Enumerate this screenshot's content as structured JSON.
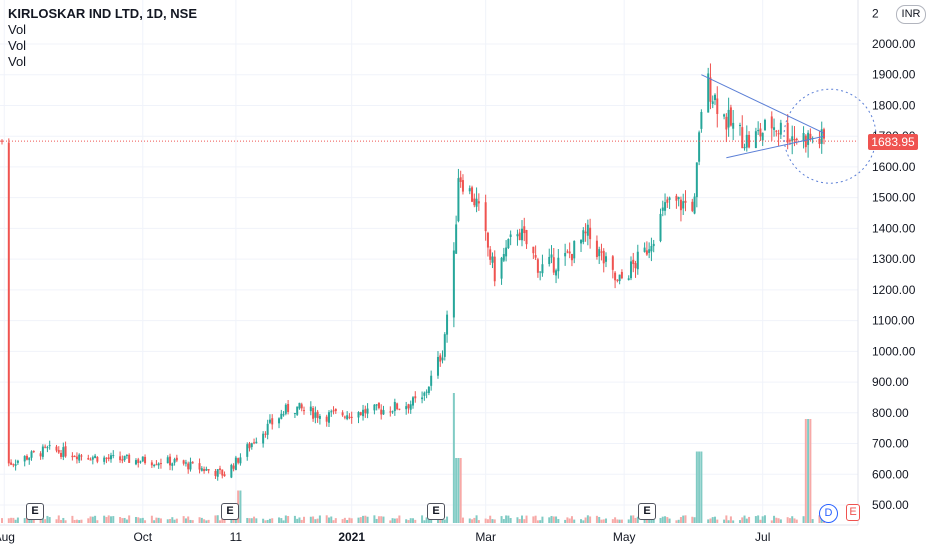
{
  "legend": {
    "title": "KIRLOSKAR IND LTD, 1D, NSE",
    "lines": [
      "Vol",
      "Vol",
      "Vol"
    ]
  },
  "currency_label": "INR",
  "last_price": {
    "label": "1683.95",
    "value": 1683.95
  },
  "events": [
    "E",
    "E",
    "E",
    "E"
  ],
  "event_right": "E",
  "dividend_label": "D",
  "colors": {
    "up": "#26a69a",
    "down": "#ef5350",
    "drawing": "#5b7fd6",
    "grid": "#f0f3fa"
  },
  "chart_data": {
    "type": "candlestick",
    "title": "KIRLOSKAR IND LTD, 1D, NSE",
    "y_ticks": [
      "2000.00",
      "1900.00",
      "1800.00",
      "1700.00",
      "1600.00",
      "1500.00",
      "1400.00",
      "1300.00",
      "1200.00",
      "1100.00",
      "1000.00",
      "900.00",
      "800.00",
      "700.00",
      "600.00",
      "500.00"
    ],
    "y_top_partial": "2",
    "x_ticks": [
      "Aug",
      "Oct",
      "11",
      "2021",
      "Mar",
      "May",
      "Jul"
    ],
    "ylim": [
      475,
      2090
    ],
    "price_path": [
      {
        "date": "2020-08-01",
        "close": 630
      },
      {
        "date": "2020-08-20",
        "close": 680
      },
      {
        "date": "2020-09-15",
        "close": 650
      },
      {
        "date": "2020-10-15",
        "close": 640
      },
      {
        "date": "2020-11-06",
        "close": 600
      },
      {
        "date": "2020-11-11",
        "close": 640
      },
      {
        "date": "2020-11-20",
        "close": 720
      },
      {
        "date": "2020-12-05",
        "close": 820
      },
      {
        "date": "2020-12-20",
        "close": 790
      },
      {
        "date": "2021-01-01",
        "close": 800
      },
      {
        "date": "2021-01-15",
        "close": 810
      },
      {
        "date": "2021-02-01",
        "close": 840
      },
      {
        "date": "2021-02-10",
        "close": 1000
      },
      {
        "date": "2021-02-15",
        "close": 1300
      },
      {
        "date": "2021-02-17",
        "close": 1580
      },
      {
        "date": "2021-02-25",
        "close": 1480
      },
      {
        "date": "2021-03-05",
        "close": 1250
      },
      {
        "date": "2021-03-15",
        "close": 1400
      },
      {
        "date": "2021-03-25",
        "close": 1270
      },
      {
        "date": "2021-04-05",
        "close": 1300
      },
      {
        "date": "2021-04-15",
        "close": 1380
      },
      {
        "date": "2021-04-28",
        "close": 1220
      },
      {
        "date": "2021-05-10",
        "close": 1320
      },
      {
        "date": "2021-05-20",
        "close": 1480
      },
      {
        "date": "2021-06-01",
        "close": 1480
      },
      {
        "date": "2021-06-05",
        "close": 1900
      },
      {
        "date": "2021-06-15",
        "close": 1750
      },
      {
        "date": "2021-06-25",
        "close": 1680
      },
      {
        "date": "2021-07-05",
        "close": 1740
      },
      {
        "date": "2021-07-15",
        "close": 1700
      },
      {
        "date": "2021-07-25",
        "close": 1690
      },
      {
        "date": "2021-07-28",
        "close": 1683.95
      }
    ],
    "volume_spikes": [
      {
        "date": "2020-11-13",
        "level": 0.25
      },
      {
        "date": "2021-02-16",
        "level": 1.0
      },
      {
        "date": "2021-02-17",
        "level": 0.5
      },
      {
        "date": "2021-06-03",
        "level": 0.55
      },
      {
        "date": "2021-07-21",
        "level": 0.8
      }
    ],
    "annotations": {
      "triangle": {
        "upper": [
          {
            "date": "2021-06-04",
            "price": 1900
          },
          {
            "date": "2021-07-28",
            "price": 1710
          }
        ],
        "lower": [
          {
            "date": "2021-06-15",
            "price": 1630
          },
          {
            "date": "2021-07-28",
            "price": 1700
          }
        ]
      },
      "highlight": "dotted circle around triangle apex"
    }
  }
}
